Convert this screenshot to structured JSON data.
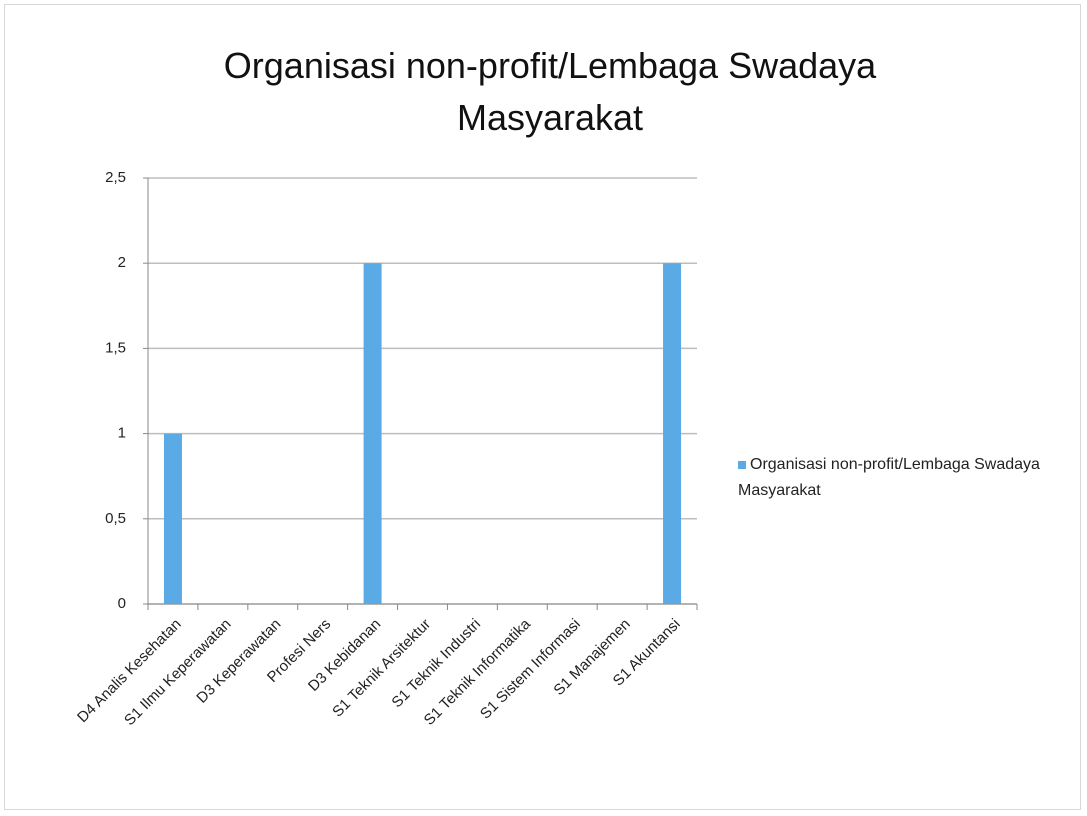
{
  "chart_data": {
    "type": "bar",
    "title": "Organisasi non-profit/Lembaga Swadaya Masyarakat",
    "categories": [
      "D4 Analis Kesehatan",
      "S1 Ilmu Keperawatan",
      "D3 Keperawatan",
      "Profesi Ners",
      "D3 Kebidanan",
      "S1 Teknik Arsitektur",
      "S1 Teknik Industri",
      "S1 Teknik Informatika",
      "S1 Sistem Informasi",
      "S1 Manajemen",
      "S1 Akuntansi"
    ],
    "series": [
      {
        "name": "Organisasi non-profit/Lembaga Swadaya Masyarakat",
        "color": "#5aaae6",
        "values": [
          1,
          0,
          0,
          0,
          2,
          0,
          0,
          0,
          0,
          0,
          2
        ]
      }
    ],
    "ylim": [
      0,
      2.5
    ],
    "yticks": [
      0,
      {
        "value": 0.5,
        "label": "0,5"
      },
      1,
      {
        "value": 1.5,
        "label": "1,5"
      },
      2,
      {
        "value": 2.5,
        "label": "2,5"
      }
    ],
    "grid": true,
    "legend": "right"
  }
}
